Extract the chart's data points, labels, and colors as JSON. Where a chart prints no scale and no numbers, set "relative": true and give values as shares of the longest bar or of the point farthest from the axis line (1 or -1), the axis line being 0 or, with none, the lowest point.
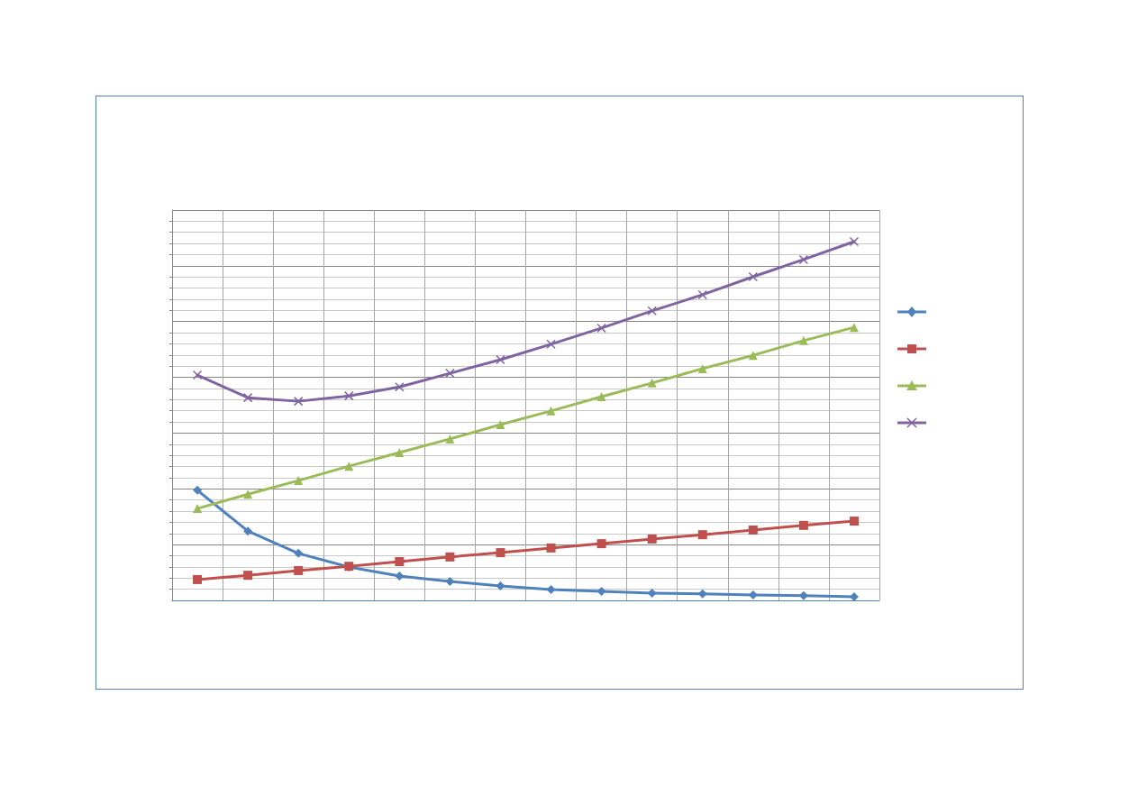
{
  "chart_data": {
    "type": "line",
    "relative": true,
    "grid": true,
    "line_style": "solid",
    "categories": [
      null,
      null,
      null,
      null,
      null,
      null,
      null,
      null,
      null,
      null,
      null,
      null,
      null,
      null
    ],
    "series": [
      {
        "color": "#4f81bd",
        "marker": "diamond",
        "values": [
          0.307,
          0.193,
          0.131,
          0.093,
          0.068,
          0.053,
          0.04,
          0.03,
          0.025,
          0.02,
          0.018,
          0.015,
          0.013,
          0.01
        ]
      },
      {
        "color": "#c0504d",
        "marker": "square",
        "values": [
          0.058,
          0.07,
          0.083,
          0.095,
          0.108,
          0.121,
          0.133,
          0.146,
          0.158,
          0.171,
          0.183,
          0.196,
          0.209,
          0.221
        ]
      },
      {
        "color": "#9bbb59",
        "marker": "triangle",
        "values": [
          0.256,
          0.296,
          0.334,
          0.374,
          0.412,
          0.45,
          0.49,
          0.528,
          0.568,
          0.606,
          0.646,
          0.683,
          0.724,
          0.761
        ]
      },
      {
        "color": "#8064a2",
        "marker": "cross",
        "values": [
          0.628,
          0.565,
          0.555,
          0.57,
          0.595,
          0.633,
          0.671,
          0.714,
          0.759,
          0.807,
          0.852,
          0.902,
          0.95,
          1
        ]
      }
    ]
  }
}
